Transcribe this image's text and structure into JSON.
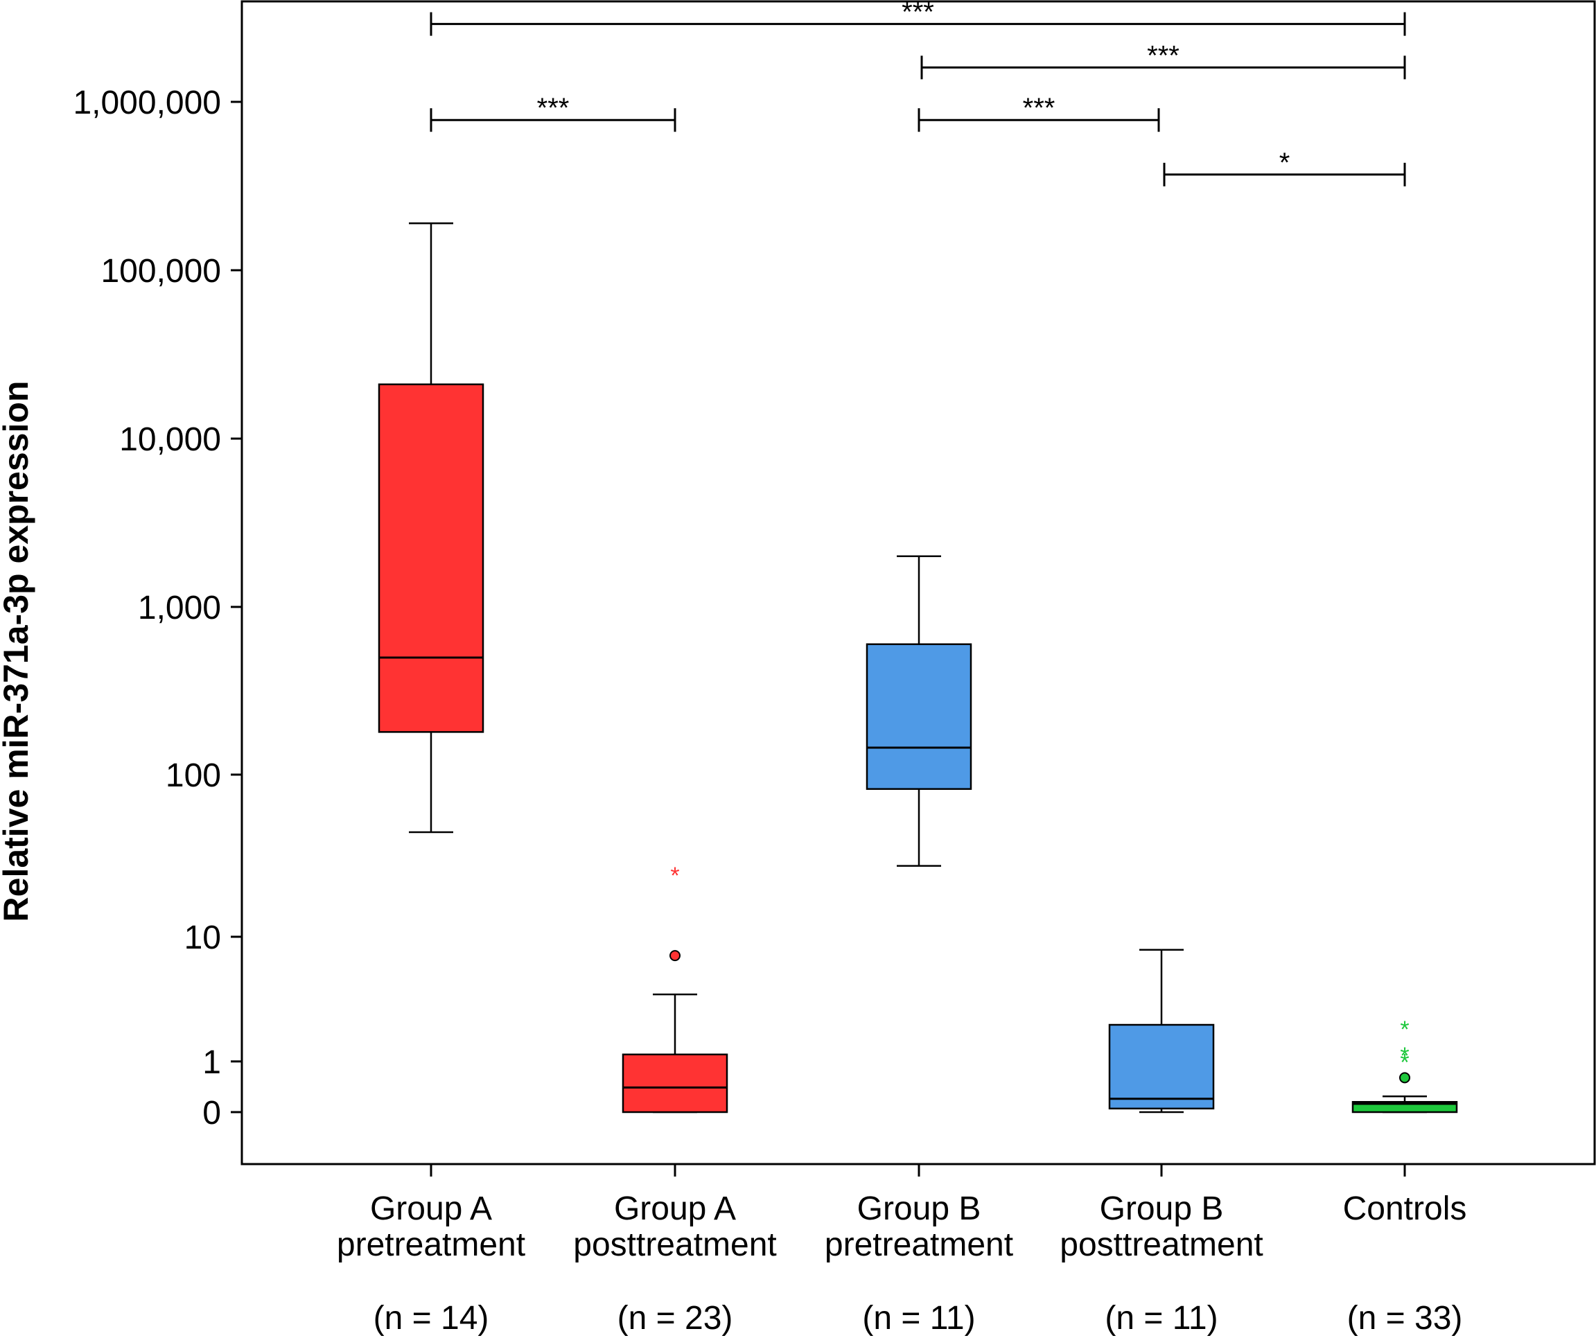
{
  "chart_data": {
    "type": "boxplot",
    "ylabel": "Relative miR-371a-3p expression",
    "yscale": "log (plus 1)",
    "ylim": [
      0,
      5000000
    ],
    "yticks": [
      0,
      1,
      10,
      100,
      1000,
      10000,
      100000,
      1000000
    ],
    "ytick_labels": [
      "0",
      "1",
      "10",
      "100",
      "1,000",
      "10,000",
      "100,000",
      "1,000,000"
    ],
    "categories": [
      {
        "line1": "Group A",
        "line2": "pretreatment",
        "n": "(n = 14)"
      },
      {
        "line1": "Group A",
        "line2": "posttreatment",
        "n": "(n = 23)"
      },
      {
        "line1": "Group B",
        "line2": "pretreatment",
        "n": "(n = 11)"
      },
      {
        "line1": "Group B",
        "line2": "posttreatment",
        "n": "(n = 11)"
      },
      {
        "line1": "Controls",
        "line2": "",
        "n": "(n = 33)"
      }
    ],
    "boxes": [
      {
        "color": "#ff3333",
        "whisker_low": 45,
        "q1": 180,
        "median": 500,
        "q3": 21000,
        "whisker_high": 190000,
        "outliers": [],
        "extremes": []
      },
      {
        "color": "#ff3333",
        "whisker_low": 0,
        "q1": 0,
        "median": 0.4,
        "q3": 1.2,
        "whisker_high": 4,
        "outliers": [
          7.5
        ],
        "extremes": [
          26
        ]
      },
      {
        "color": "#4f9ae6",
        "whisker_low": 28,
        "q1": 82,
        "median": 145,
        "q3": 600,
        "whisker_high": 2000,
        "outliers": [],
        "extremes": []
      },
      {
        "color": "#4f9ae6",
        "whisker_low": 0,
        "q1": 0.05,
        "median": 0.2,
        "q3": 2.3,
        "whisker_high": 8.2,
        "outliers": [],
        "extremes": []
      },
      {
        "color": "#1ec83c",
        "whisker_low": 0,
        "q1": 0,
        "median": 0.12,
        "q3": 0.15,
        "whisker_high": 0.24,
        "outliers": [
          0.6
        ],
        "extremes": [
          1.1,
          1.3,
          2.3
        ]
      }
    ],
    "significance": [
      {
        "from": 0,
        "to": 4,
        "label": "***",
        "y": 2900000
      },
      {
        "from": 2,
        "to": 4,
        "label": "***",
        "y": 1600000
      },
      {
        "from": 0,
        "to": 1,
        "label": "***",
        "y": 780000
      },
      {
        "from": 2,
        "to": 3,
        "label": "***",
        "y": 780000
      },
      {
        "from": 3,
        "to": 4,
        "label": "*",
        "y": 370000
      }
    ]
  }
}
